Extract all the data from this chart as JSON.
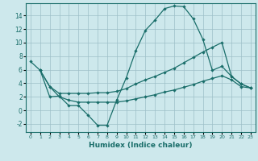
{
  "xlabel": "Humidex (Indice chaleur)",
  "background_color": "#cde8ec",
  "grid_color": "#9dbfc8",
  "line_color": "#1a6e6a",
  "xlim": [
    -0.5,
    23.5
  ],
  "ylim": [
    -3.2,
    15.8
  ],
  "xticks": [
    0,
    1,
    2,
    3,
    4,
    5,
    6,
    7,
    8,
    9,
    10,
    11,
    12,
    13,
    14,
    15,
    16,
    17,
    18,
    19,
    20,
    21,
    22,
    23
  ],
  "yticks": [
    -2,
    0,
    2,
    4,
    6,
    8,
    10,
    12,
    14
  ],
  "line1_x": [
    0,
    1,
    2,
    3,
    4,
    5,
    6,
    7,
    8,
    9,
    10,
    11,
    12,
    13,
    14,
    15,
    16,
    17,
    18,
    19,
    20,
    21,
    22,
    23
  ],
  "line1_y": [
    7.2,
    5.9,
    2.0,
    2.1,
    0.7,
    0.7,
    -0.7,
    -2.2,
    -2.2,
    1.5,
    4.8,
    8.8,
    11.8,
    13.3,
    15.0,
    15.4,
    15.3,
    13.5,
    10.5,
    5.9,
    6.5,
    5.0,
    3.9,
    3.3
  ],
  "line2_x": [
    1,
    2,
    3,
    4,
    5,
    6,
    7,
    8,
    9,
    10,
    11,
    12,
    13,
    14,
    15,
    16,
    17,
    18,
    19,
    20,
    21,
    22,
    23
  ],
  "line2_y": [
    5.9,
    3.5,
    2.5,
    2.5,
    2.5,
    2.5,
    2.6,
    2.6,
    2.8,
    3.2,
    3.9,
    4.5,
    5.0,
    5.6,
    6.2,
    7.0,
    7.8,
    8.6,
    9.3,
    10.0,
    5.0,
    3.9,
    3.3
  ],
  "line3_x": [
    1,
    2,
    3,
    4,
    5,
    6,
    7,
    8,
    9,
    10,
    11,
    12,
    13,
    14,
    15,
    16,
    17,
    18,
    19,
    20,
    21,
    22,
    23
  ],
  "line3_y": [
    5.9,
    3.5,
    2.0,
    1.5,
    1.2,
    1.2,
    1.2,
    1.2,
    1.2,
    1.4,
    1.7,
    2.0,
    2.3,
    2.7,
    3.0,
    3.4,
    3.8,
    4.3,
    4.7,
    5.1,
    4.5,
    3.5,
    3.3
  ]
}
